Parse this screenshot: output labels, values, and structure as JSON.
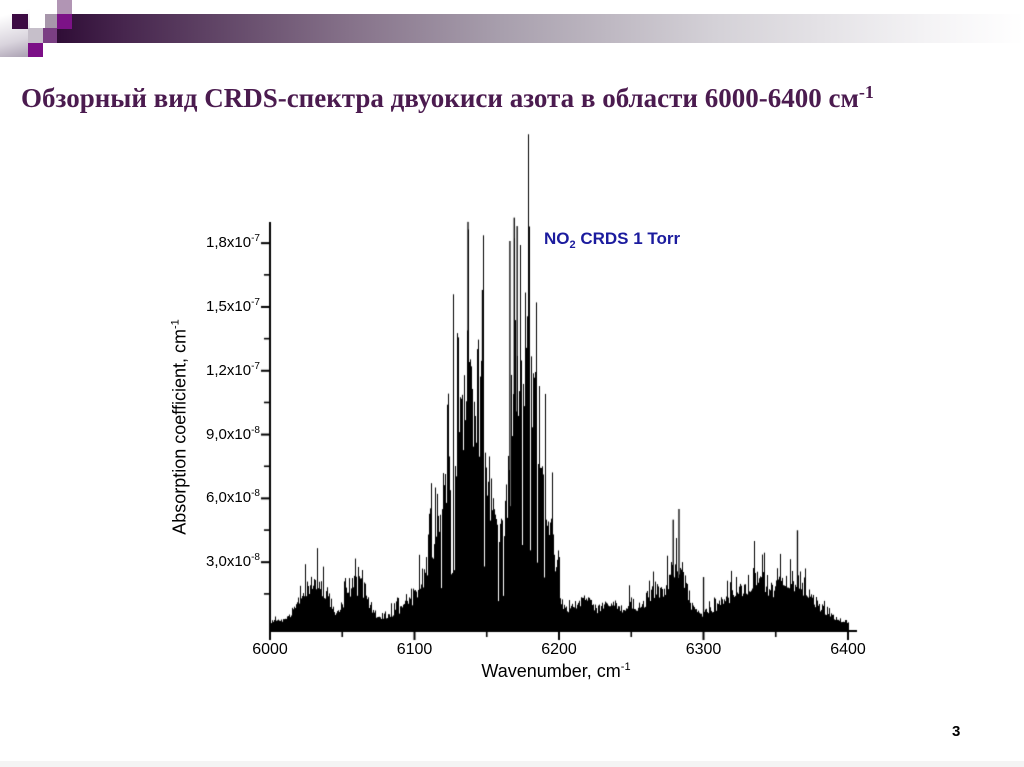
{
  "slide": {
    "title_main": "Обзорный вид CRDS-спектра двуокиси азота в области 6000-6400 см",
    "title_sup": "-1",
    "page_number": "3"
  },
  "header": {
    "colors": {
      "bar_start": "#2f0d36",
      "title_text": "#4b1b4f",
      "square_dark_purple": "#3c0a43",
      "square_gray_mauve": "#a796ab",
      "square_bright_purple_top": "#7c1287",
      "square_light_mauve": "#b195b4",
      "square_light_gray": "#c6bfca",
      "square_medium_purple": "#7a3f83",
      "square_bright_purple_bottom": "#7c0f87"
    }
  },
  "chart_data": {
    "type": "line",
    "subtype": "stick-absorption-spectrum",
    "title": "",
    "legend": {
      "prefix": "NO",
      "sub": "2",
      "suffix": " CRDS 1 Torr",
      "color": "#1b1b9e"
    },
    "xlabel": {
      "text": "Wavenumber, cm",
      "sup": "-1"
    },
    "ylabel": {
      "text": "Absorption coefficient, cm",
      "sup": "-1"
    },
    "xlim": [
      6000,
      6400
    ],
    "ylim_units_1e-7_cm-1": [
      0,
      1.95
    ],
    "grid": false,
    "legend_position": "top-right-inside",
    "x_ticks": [
      {
        "label": "6000",
        "value": 6000
      },
      {
        "label": "6100",
        "value": 6100
      },
      {
        "label": "6200",
        "value": 6200
      },
      {
        "label": "6300",
        "value": 6300
      },
      {
        "label": "6400",
        "value": 6400
      }
    ],
    "x_minor_ticks": [
      6050,
      6150,
      6250,
      6350
    ],
    "y_ticks": [
      {
        "mantissa": "3,0x10",
        "exp": "-8",
        "value_1e-7": 0.3
      },
      {
        "mantissa": "6,0x10",
        "exp": "-8",
        "value_1e-7": 0.6
      },
      {
        "mantissa": "9,0x10",
        "exp": "-8",
        "value_1e-7": 0.9
      },
      {
        "mantissa": "1,2x10",
        "exp": "-7",
        "value_1e-7": 1.2
      },
      {
        "mantissa": "1,5x10",
        "exp": "-7",
        "value_1e-7": 1.5
      },
      {
        "mantissa": "1,8x10",
        "exp": "-7",
        "value_1e-7": 1.8
      }
    ],
    "y_minor_ticks_1e-7": [
      0.15,
      0.45,
      0.75,
      1.05,
      1.35,
      1.65
    ],
    "envelope_units": "[wavenumber cm-1, absorption coefficient in 1e-7 cm-1]",
    "envelope": [
      [
        6000,
        0.02
      ],
      [
        6004,
        0.03
      ],
      [
        6008,
        0.03
      ],
      [
        6012,
        0.05
      ],
      [
        6016,
        0.09
      ],
      [
        6020,
        0.14
      ],
      [
        6024,
        0.19
      ],
      [
        6028,
        0.22
      ],
      [
        6032,
        0.24
      ],
      [
        6036,
        0.23
      ],
      [
        6040,
        0.18
      ],
      [
        6044,
        0.08
      ],
      [
        6047,
        0.07
      ],
      [
        6050,
        0.13
      ],
      [
        6054,
        0.2
      ],
      [
        6058,
        0.24
      ],
      [
        6062,
        0.23
      ],
      [
        6066,
        0.19
      ],
      [
        6070,
        0.11
      ],
      [
        6074,
        0.05
      ],
      [
        6078,
        0.05
      ],
      [
        6082,
        0.06
      ],
      [
        6086,
        0.08
      ],
      [
        6090,
        0.1
      ],
      [
        6094,
        0.12
      ],
      [
        6098,
        0.15
      ],
      [
        6102,
        0.2
      ],
      [
        6106,
        0.28
      ],
      [
        6110,
        0.42
      ],
      [
        6114,
        0.55
      ],
      [
        6118,
        0.7
      ],
      [
        6122,
        0.85
      ],
      [
        6126,
        1.0
      ],
      [
        6130,
        1.15
      ],
      [
        6134,
        1.3
      ],
      [
        6138,
        1.4
      ],
      [
        6142,
        1.36
      ],
      [
        6146,
        1.28
      ],
      [
        6149,
        1.05
      ],
      [
        6152,
        0.78
      ],
      [
        6155,
        0.58
      ],
      [
        6158,
        0.46
      ],
      [
        6161,
        0.55
      ],
      [
        6164,
        0.75
      ],
      [
        6167,
        1.0
      ],
      [
        6170,
        1.25
      ],
      [
        6173,
        1.5
      ],
      [
        6176,
        1.55
      ],
      [
        6179,
        1.46
      ],
      [
        6182,
        1.34
      ],
      [
        6185,
        1.18
      ],
      [
        6188,
        1.02
      ],
      [
        6191,
        0.82
      ],
      [
        6194,
        0.6
      ],
      [
        6197,
        0.4
      ],
      [
        6200,
        0.22
      ],
      [
        6203,
        0.1
      ],
      [
        6206,
        0.08
      ],
      [
        6210,
        0.11
      ],
      [
        6214,
        0.13
      ],
      [
        6218,
        0.14
      ],
      [
        6222,
        0.12
      ],
      [
        6226,
        0.09
      ],
      [
        6230,
        0.11
      ],
      [
        6234,
        0.13
      ],
      [
        6238,
        0.11
      ],
      [
        6242,
        0.09
      ],
      [
        6246,
        0.11
      ],
      [
        6250,
        0.13
      ],
      [
        6254,
        0.11
      ],
      [
        6258,
        0.13
      ],
      [
        6262,
        0.17
      ],
      [
        6266,
        0.21
      ],
      [
        6270,
        0.18
      ],
      [
        6274,
        0.24
      ],
      [
        6278,
        0.32
      ],
      [
        6282,
        0.36
      ],
      [
        6286,
        0.3
      ],
      [
        6290,
        0.14
      ],
      [
        6294,
        0.08
      ],
      [
        6298,
        0.06
      ],
      [
        6302,
        0.08
      ],
      [
        6306,
        0.1
      ],
      [
        6310,
        0.12
      ],
      [
        6314,
        0.15
      ],
      [
        6318,
        0.16
      ],
      [
        6322,
        0.18
      ],
      [
        6326,
        0.21
      ],
      [
        6330,
        0.24
      ],
      [
        6334,
        0.27
      ],
      [
        6338,
        0.28
      ],
      [
        6342,
        0.26
      ],
      [
        6346,
        0.22
      ],
      [
        6350,
        0.21
      ],
      [
        6354,
        0.23
      ],
      [
        6358,
        0.25
      ],
      [
        6362,
        0.26
      ],
      [
        6366,
        0.25
      ],
      [
        6370,
        0.22
      ],
      [
        6374,
        0.18
      ],
      [
        6378,
        0.13
      ],
      [
        6382,
        0.1
      ],
      [
        6386,
        0.07
      ],
      [
        6390,
        0.05
      ],
      [
        6394,
        0.03
      ],
      [
        6398,
        0.02
      ]
    ],
    "notable_spikes": [
      [
        6137,
        1.9
      ],
      [
        6147,
        1.58
      ],
      [
        6166,
        1.81
      ],
      [
        6169,
        1.92
      ],
      [
        6171,
        1.88
      ],
      [
        6279,
        0.5
      ],
      [
        6283,
        0.55
      ],
      [
        6300,
        0.23
      ],
      [
        6365,
        0.45
      ]
    ]
  }
}
